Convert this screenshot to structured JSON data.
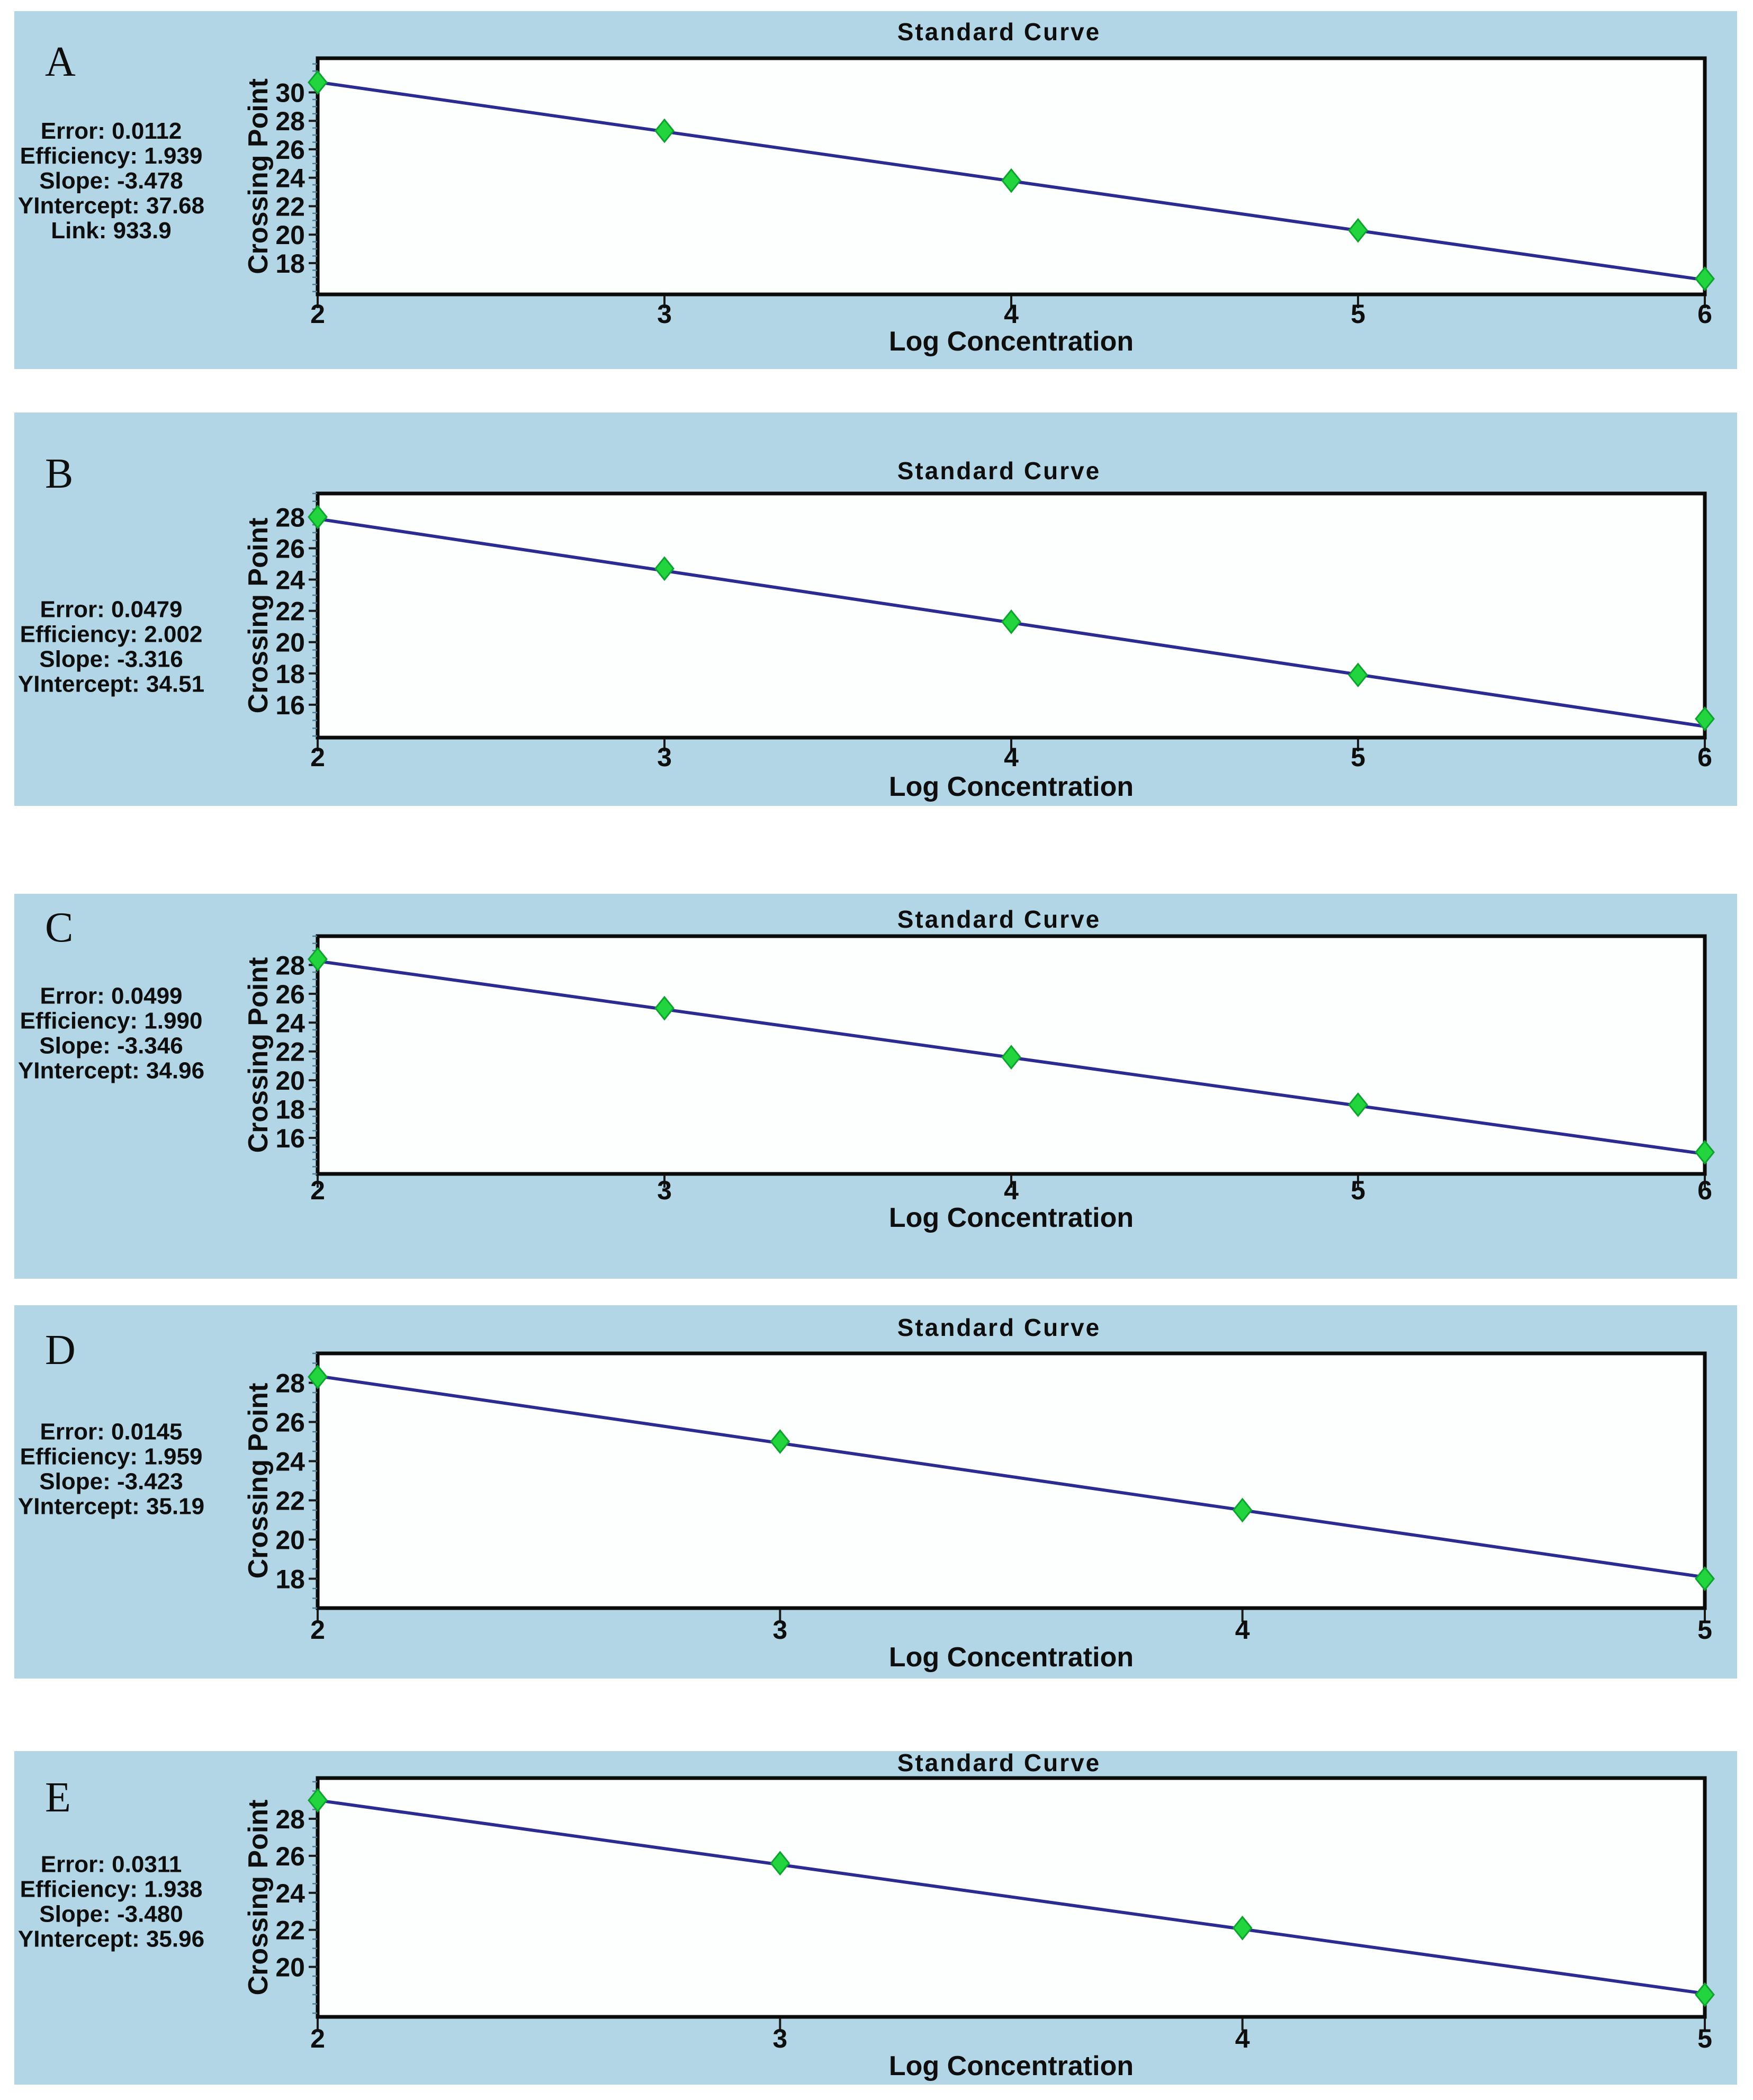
{
  "figure": {
    "description_visible_text_only": "Five qPCR standard-curve panels labeled A to E",
    "panel_count": 5
  },
  "colors": {
    "page_bg": "#ffffff",
    "panel_bg": "#b2d6e5",
    "plot_bg": "#fdfefe",
    "frame": "#0b0b0b",
    "regression_line": "#2b2b91",
    "point_fill": "#22d43e",
    "point_stroke": "#0da32e",
    "text": "#0e0e0e",
    "minor_tick": "#537f96"
  },
  "panels": [
    {
      "label": "A",
      "stats": [
        "Error: 0.0112",
        "Efficiency: 1.939",
        "Slope: -3.478",
        "YIntercept: 37.68",
        "Link: 933.9"
      ],
      "chart_data": {
        "type": "line",
        "title": "Standard Curve",
        "xlabel": "Log Concentration",
        "ylabel": "Crossing Point",
        "x": [
          2,
          3,
          4,
          5,
          6
        ],
        "y": [
          30.7,
          27.3,
          23.8,
          20.3,
          16.9
        ],
        "fit": {
          "slope": -3.478,
          "intercept": 37.68
        },
        "xlim": [
          2,
          6
        ],
        "ylim": [
          15.8,
          32.4
        ],
        "xticks": [
          2,
          3,
          4,
          5,
          6
        ],
        "yticks": [
          18,
          20,
          22,
          24,
          26,
          28,
          30
        ],
        "grid": false,
        "legend": null,
        "marker": "diamond"
      }
    },
    {
      "label": "B",
      "stats": [
        "Error: 0.0479",
        "Efficiency: 2.002",
        "Slope: -3.316",
        "YIntercept: 34.51"
      ],
      "chart_data": {
        "type": "line",
        "title": "Standard Curve",
        "xlabel": "Log Concentration",
        "ylabel": "Crossing Point",
        "x": [
          2,
          3,
          4,
          5,
          6
        ],
        "y": [
          28.0,
          24.7,
          21.3,
          17.9,
          15.1
        ],
        "fit": {
          "slope": -3.316,
          "intercept": 34.51
        },
        "xlim": [
          2,
          6
        ],
        "ylim": [
          13.9,
          29.5
        ],
        "xticks": [
          2,
          3,
          4,
          5,
          6
        ],
        "yticks": [
          16,
          18,
          20,
          22,
          24,
          26,
          28
        ],
        "grid": false,
        "legend": null,
        "marker": "diamond"
      }
    },
    {
      "label": "C",
      "stats": [
        "Error: 0.0499",
        "Efficiency: 1.990",
        "Slope: -3.346",
        "YIntercept: 34.96"
      ],
      "chart_data": {
        "type": "line",
        "title": "Standard Curve",
        "xlabel": "Log Concentration",
        "ylabel": "Crossing Point",
        "x": [
          2,
          3,
          4,
          5,
          6
        ],
        "y": [
          28.4,
          25.0,
          21.6,
          18.3,
          15.0
        ],
        "fit": {
          "slope": -3.346,
          "intercept": 34.96
        },
        "xlim": [
          2,
          6
        ],
        "ylim": [
          13.5,
          30.0
        ],
        "xticks": [
          2,
          3,
          4,
          5,
          6
        ],
        "yticks": [
          16,
          18,
          20,
          22,
          24,
          26,
          28
        ],
        "grid": false,
        "legend": null,
        "marker": "diamond"
      }
    },
    {
      "label": "D",
      "stats": [
        "Error: 0.0145",
        "Efficiency: 1.959",
        "Slope: -3.423",
        "YIntercept: 35.19"
      ],
      "chart_data": {
        "type": "line",
        "title": "Standard Curve",
        "xlabel": "Log Concentration",
        "ylabel": "Crossing Point",
        "x": [
          2,
          3,
          4,
          5
        ],
        "y": [
          28.3,
          25.0,
          21.5,
          18.0
        ],
        "fit": {
          "slope": -3.423,
          "intercept": 35.19
        },
        "xlim": [
          2,
          5
        ],
        "ylim": [
          16.5,
          29.5
        ],
        "xticks": [
          2,
          3,
          4,
          5
        ],
        "yticks": [
          18,
          20,
          22,
          24,
          26,
          28
        ],
        "grid": false,
        "legend": null,
        "marker": "diamond"
      }
    },
    {
      "label": "E",
      "stats": [
        "Error: 0.0311",
        "Efficiency: 1.938",
        "Slope: -3.480",
        "YIntercept: 35.96"
      ],
      "chart_data": {
        "type": "line",
        "title": "Standard Curve",
        "xlabel": "Log Concentration",
        "ylabel": "Crossing Point",
        "x": [
          2,
          3,
          4,
          5
        ],
        "y": [
          29.0,
          25.6,
          22.1,
          18.5
        ],
        "fit": {
          "slope": -3.48,
          "intercept": 35.96
        },
        "xlim": [
          2,
          5
        ],
        "ylim": [
          17.3,
          30.2
        ],
        "xticks": [
          2,
          3,
          4,
          5
        ],
        "yticks": [
          20,
          22,
          24,
          26,
          28
        ],
        "grid": false,
        "legend": null,
        "marker": "diamond"
      }
    }
  ]
}
